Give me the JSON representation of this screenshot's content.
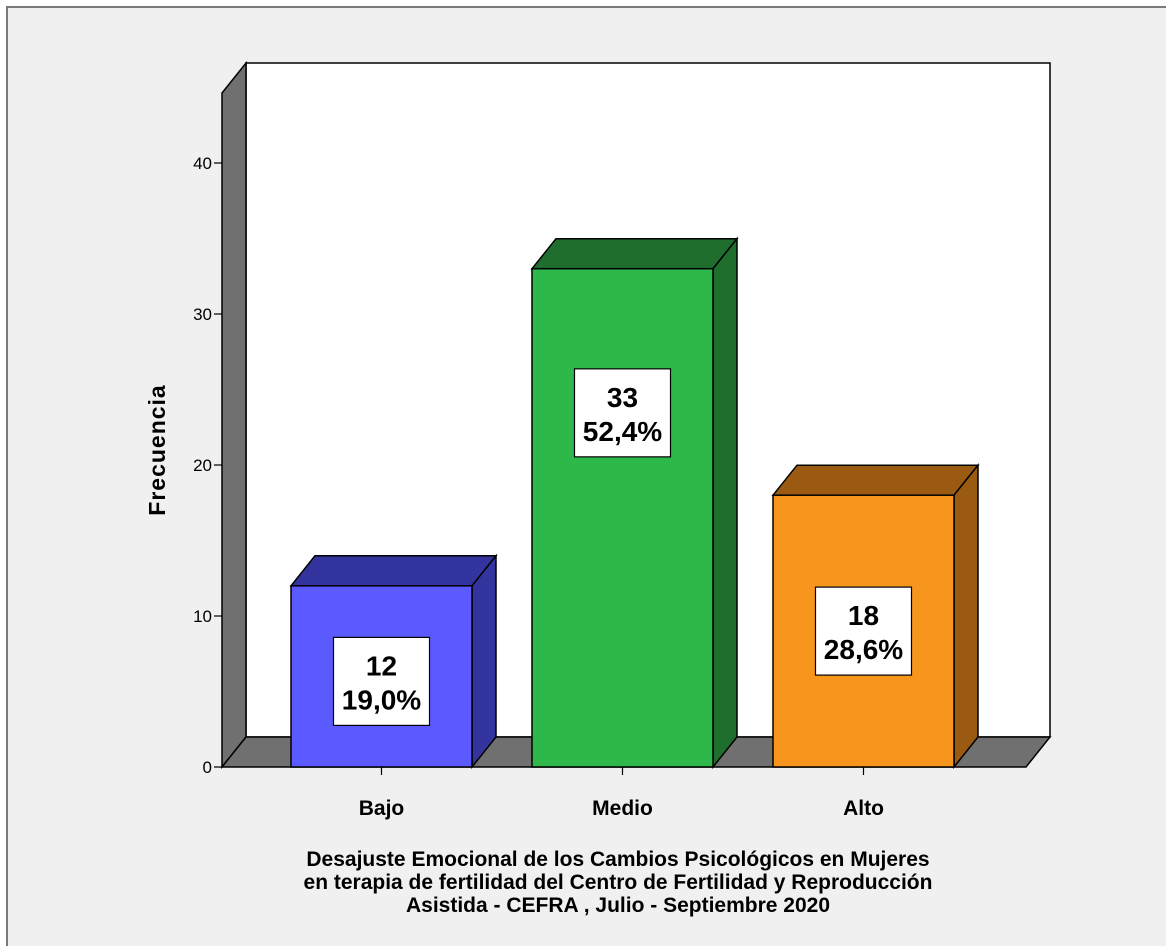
{
  "chart_data": {
    "type": "bar",
    "style": "3d",
    "categories": [
      "Bajo",
      "Medio",
      "Alto"
    ],
    "values": [
      12,
      33,
      18
    ],
    "percent_labels": [
      "19,0%",
      "52,4%",
      "28,6%"
    ],
    "colors": [
      "#5a5aff",
      "#2eb84a",
      "#f7951c"
    ],
    "side_colors": [
      "#34349e",
      "#1f6e2e",
      "#9a5a12"
    ],
    "ylabel": "Frecuencia",
    "xlabel_lines": [
      "Desajuste Emocional de los Cambios Psicológicos en Mujeres",
      "en terapia de fertilidad del Centro de Fertilidad y Reproducción",
      "Asistida - CEFRA , Julio - Septiembre 2020"
    ],
    "yticks": [
      0,
      10,
      20,
      30,
      40
    ],
    "ylim": [
      0,
      40
    ],
    "grid": false,
    "legend": "none"
  }
}
